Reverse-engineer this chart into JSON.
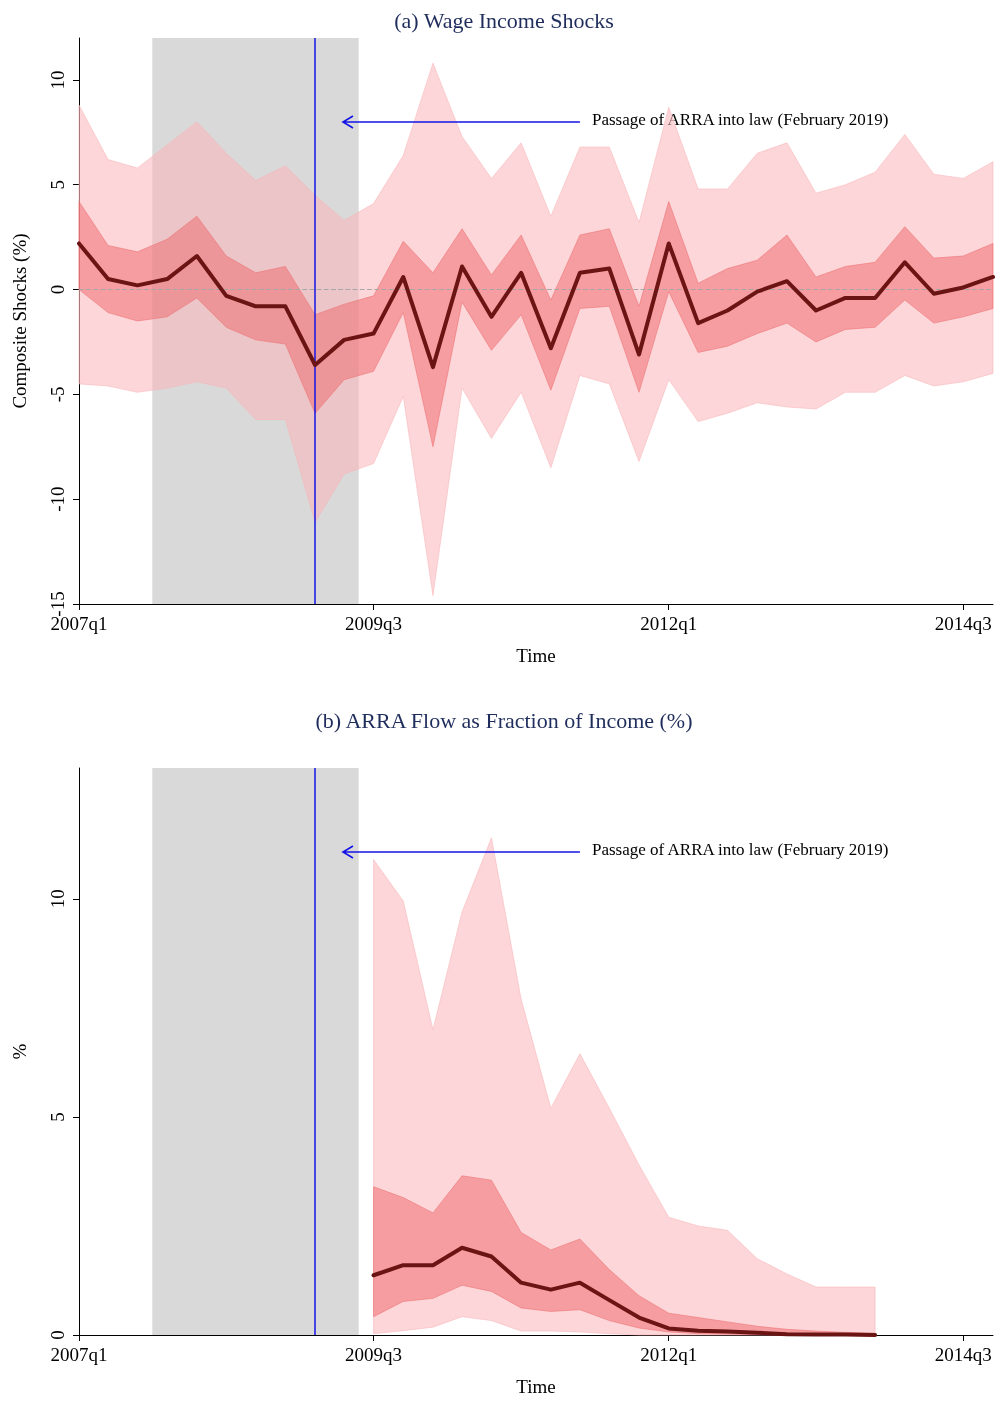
{
  "chart_data": [
    {
      "type": "line",
      "title": "(a) Wage Income Shocks",
      "xlabel": "Time",
      "ylabel": "Composite Shocks (%)",
      "x": [
        "2007-01",
        "2007-04",
        "2007-07",
        "2007-10",
        "2008-01",
        "2008-04",
        "2008-07",
        "2008-10",
        "2009-01",
        "2009-04",
        "2009-07",
        "2009-10",
        "2010-01",
        "2010-04",
        "2010-07",
        "2010-10",
        "2011-01",
        "2011-04",
        "2011-07",
        "2011-10",
        "2012-01",
        "2012-04",
        "2012-07",
        "2012-10",
        "2013-01",
        "2013-04",
        "2013-07",
        "2013-10",
        "2014-01",
        "2014-04",
        "2014-07",
        "2014-10"
      ],
      "series": [
        {
          "color": "#6b1414",
          "values": [
            2.2,
            0.5,
            0.2,
            0.5,
            1.6,
            -0.3,
            -0.8,
            -0.8,
            -3.6,
            -2.4,
            -2.1,
            0.6,
            -3.7,
            1.1,
            -1.3,
            0.8,
            -2.8,
            0.8,
            1.0,
            -3.1,
            2.2,
            -1.6,
            -1.0,
            -0.1,
            0.4,
            -1.0,
            -0.4,
            -0.4,
            1.3,
            -0.2,
            0.1,
            0.6
          ]
        },
        {
          "color": "#ee6f72",
          "values": [
            null,
            null,
            null,
            null,
            null,
            null,
            null,
            null,
            null,
            null,
            null,
            null,
            null,
            null,
            null,
            null,
            null,
            null,
            null,
            null,
            null,
            null,
            null,
            null,
            null,
            null,
            null,
            null,
            null,
            null,
            null,
            null
          ],
          "upper": [
            4.2,
            2.1,
            1.8,
            2.4,
            3.5,
            1.6,
            0.8,
            1.1,
            -1.2,
            -0.7,
            -0.3,
            2.3,
            0.8,
            2.9,
            0.7,
            2.6,
            -0.5,
            2.6,
            2.9,
            -0.8,
            4.2,
            0.3,
            1.0,
            1.4,
            2.6,
            0.6,
            1.1,
            1.3,
            3.0,
            1.5,
            1.6,
            2.2
          ],
          "lower": [
            0,
            -1.1,
            -1.5,
            -1.3,
            -0.4,
            -1.8,
            -2.4,
            -2.6,
            -5.9,
            -4.3,
            -3.9,
            -1.1,
            -7.5,
            -0.6,
            -2.9,
            -1.2,
            -4.8,
            -0.9,
            -0.8,
            -4.9,
            -0.1,
            -3.0,
            -2.7,
            -2.1,
            -1.6,
            -2.5,
            -1.9,
            -1.8,
            -0.5,
            -1.6,
            -1.3,
            -0.9
          ]
        },
        {
          "color": "#f9b4b8",
          "values": [
            null,
            null,
            null,
            null,
            null,
            null,
            null,
            null,
            null,
            null,
            null,
            null,
            null,
            null,
            null,
            null,
            null,
            null,
            null,
            null,
            null,
            null,
            null,
            null,
            null,
            null,
            null,
            null,
            null,
            null,
            null,
            null
          ],
          "upper": [
            8.8,
            6.2,
            5.8,
            6.9,
            8.0,
            6.5,
            5.2,
            5.9,
            4.5,
            3.3,
            4.1,
            6.4,
            10.8,
            7.3,
            5.3,
            7.0,
            3.5,
            6.8,
            6.8,
            3.2,
            8.7,
            4.8,
            4.8,
            6.5,
            7.0,
            4.6,
            5.0,
            5.6,
            7.4,
            5.5,
            5.3,
            6.1
          ],
          "lower": [
            -4.5,
            -4.6,
            -4.9,
            -4.7,
            -4.4,
            -4.7,
            -6.2,
            -6.2,
            -11.1,
            -8.8,
            -8.3,
            -5.1,
            -14.6,
            -4.7,
            -7.1,
            -4.9,
            -8.5,
            -4.1,
            -4.5,
            -8.2,
            -4.3,
            -6.3,
            -5.9,
            -5.4,
            -5.6,
            -5.7,
            -4.9,
            -4.9,
            -4.1,
            -4.6,
            -4.4,
            -4.0
          ]
        }
      ],
      "xlim": [
        "2007-01",
        "2014-10"
      ],
      "xticks": [
        {
          "value": "2007-01",
          "label": "2007q1"
        },
        {
          "value": "2009-07",
          "label": "2009q3"
        },
        {
          "value": "2012-01",
          "label": "2012q1"
        },
        {
          "value": "2014-07",
          "label": "2014q3"
        }
      ],
      "ylim": [
        -15,
        12
      ],
      "yticks": [
        -15,
        -10,
        -5,
        0,
        5,
        10
      ],
      "bands": [
        {
          "axis": "x",
          "from": "2007-08-16",
          "to": "2009-05-16",
          "color": "#d9d9d9"
        }
      ],
      "ref_lines": [
        {
          "axis": "y",
          "value": 0,
          "color": "#a6a6a6",
          "line_style": "dashed"
        },
        {
          "axis": "x",
          "value": "2009-01",
          "color": "#1414e6"
        }
      ],
      "annotations": [
        "Passage of ARRA into law (February 2019)"
      ],
      "grid": false,
      "marker": "none",
      "line_style": "solid"
    },
    {
      "type": "line",
      "title": "(b) ARRA Flow as Fraction of Income (%)",
      "xlabel": "Time",
      "ylabel": "%",
      "x": [
        "2009-07",
        "2009-10",
        "2010-01",
        "2010-04",
        "2010-07",
        "2010-10",
        "2011-01",
        "2011-04",
        "2011-07",
        "2011-10",
        "2012-01",
        "2012-04",
        "2012-07",
        "2012-10",
        "2013-01",
        "2013-04",
        "2013-07",
        "2013-10"
      ],
      "series": [
        {
          "color": "#6b1414",
          "values": [
            1.37,
            1.6,
            1.6,
            2.0,
            1.8,
            1.2,
            1.04,
            1.2,
            0.8,
            0.4,
            0.15,
            0.1,
            0.08,
            0.05,
            0.02,
            0.01,
            0.01,
            0
          ]
        },
        {
          "color": "#ee6f72",
          "values": [
            null,
            null,
            null,
            null,
            null,
            null,
            null,
            null,
            null,
            null,
            null,
            null,
            null,
            null,
            null,
            null,
            null,
            null
          ],
          "upper": [
            3.4,
            3.15,
            2.8,
            3.65,
            3.55,
            2.35,
            1.95,
            2.2,
            1.5,
            0.9,
            0.5,
            0.4,
            0.3,
            0.2,
            0.13,
            0.09,
            0.06,
            0.04
          ],
          "lower": [
            0.42,
            0.77,
            0.84,
            1.14,
            1.0,
            0.62,
            0.54,
            0.58,
            0.33,
            0.16,
            0.07,
            0.03,
            0.02,
            0.01,
            0,
            0,
            0,
            0
          ]
        },
        {
          "color": "#f9b4b8",
          "values": [
            null,
            null,
            null,
            null,
            null,
            null,
            null,
            null,
            null,
            null,
            null,
            null,
            null,
            null,
            null,
            null,
            null,
            null
          ],
          "upper": [
            10.9,
            9.95,
            7.0,
            9.7,
            11.4,
            7.7,
            5.2,
            6.45,
            5.2,
            3.9,
            2.7,
            2.5,
            2.4,
            1.75,
            1.4,
            1.1,
            1.1,
            1.1
          ],
          "lower": [
            0.03,
            0.1,
            0.18,
            0.42,
            0.33,
            0.09,
            0.09,
            0.07,
            0.03,
            0,
            0,
            0,
            0,
            0,
            0,
            0,
            0,
            0
          ]
        }
      ],
      "xlim": [
        "2007-01",
        "2014-10"
      ],
      "xticks": [
        {
          "value": "2007-01",
          "label": "2007q1"
        },
        {
          "value": "2009-07",
          "label": "2009q3"
        },
        {
          "value": "2012-01",
          "label": "2012q1"
        },
        {
          "value": "2014-07",
          "label": "2014q3"
        }
      ],
      "ylim": [
        0,
        13
      ],
      "yticks": [
        0,
        5,
        10
      ],
      "bands": [
        {
          "axis": "x",
          "from": "2007-08-16",
          "to": "2009-05-16",
          "color": "#d9d9d9"
        }
      ],
      "ref_lines": [
        {
          "axis": "x",
          "value": "2009-01",
          "color": "#1414e6"
        }
      ],
      "annotations": [
        "Passage of ARRA into law (February 2019)"
      ],
      "grid": false,
      "marker": "none",
      "line_style": "solid"
    }
  ]
}
